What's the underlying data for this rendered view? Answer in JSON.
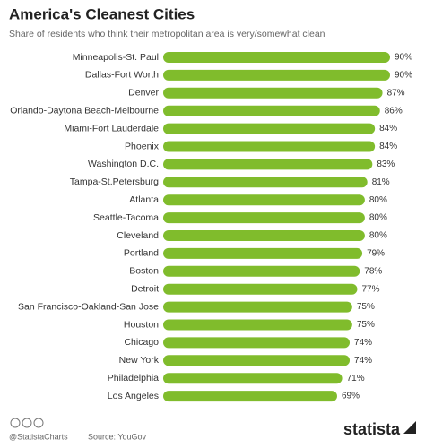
{
  "chart_data": {
    "type": "bar",
    "orientation": "horizontal",
    "title": "America's Cleanest Cities",
    "subtitle": "Share of residents who think their metropolitan area is very/somewhat clean",
    "categories": [
      "Minneapolis-St. Paul",
      "Dallas-Fort Worth",
      "Denver",
      "Orlando-Daytona Beach-Melbourne",
      "Miami-Fort Lauderdale",
      "Phoenix",
      "Washington D.C.",
      "Tampa-St.Petersburg",
      "Atlanta",
      "Seattle-Tacoma",
      "Cleveland",
      "Portland",
      "Boston",
      "Detroit",
      "San Francisco-Oakland-San Jose",
      "Houston",
      "Chicago",
      "New York",
      "Philadelphia",
      "Los Angeles"
    ],
    "values": [
      90,
      90,
      87,
      86,
      84,
      84,
      83,
      81,
      80,
      80,
      80,
      79,
      78,
      77,
      75,
      75,
      74,
      74,
      71,
      69
    ],
    "value_labels": [
      "90%",
      "90%",
      "87%",
      "86%",
      "84%",
      "84%",
      "83%",
      "81%",
      "80%",
      "80%",
      "80%",
      "79%",
      "78%",
      "77%",
      "75%",
      "75%",
      "74%",
      "74%",
      "71%",
      "69%"
    ],
    "color": "#80bc2c"
  },
  "footer": {
    "handle": "@StatistaCharts",
    "source": "Source: YouGov",
    "logo": "statista"
  }
}
